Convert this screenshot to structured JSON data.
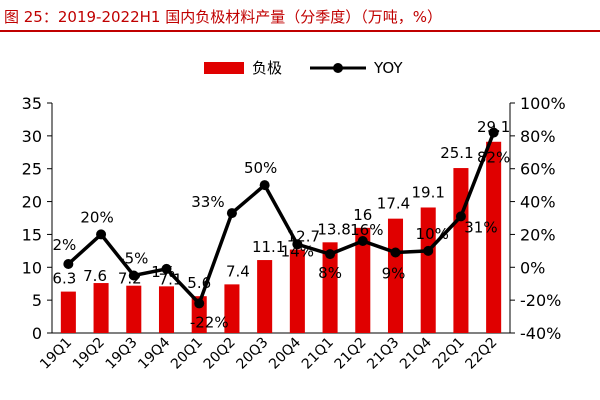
{
  "title": "图 25：2019-2022H1 国内负极材料产量（分季度）（万吨，%）",
  "colors": {
    "title": "#c00000",
    "bar": "#e00000",
    "line": "#000000"
  },
  "chart_data": {
    "type": "bar",
    "categories": [
      "19Q1",
      "19Q2",
      "19Q3",
      "19Q4",
      "20Q1",
      "20Q2",
      "20Q3",
      "20Q4",
      "21Q1",
      "21Q2",
      "21Q3",
      "21Q4",
      "22Q1",
      "22Q2"
    ],
    "series": [
      {
        "name": "负极",
        "type": "bar",
        "axis": "left",
        "values": [
          6.3,
          7.6,
          7.2,
          7.1,
          5.6,
          7.4,
          11.1,
          12.7,
          13.8,
          16,
          17.4,
          19.1,
          25.1,
          29.1
        ],
        "labels": [
          "6.3",
          "7.6",
          "7.2",
          "7.1",
          "5.6",
          "7.4",
          "11.1",
          "12.7",
          "13.8",
          "16",
          "17.4",
          "19.1",
          "25.1",
          "29.1"
        ]
      },
      {
        "name": "YOY",
        "type": "line",
        "axis": "right",
        "values": [
          2,
          20,
          -5,
          -1,
          -22,
          33,
          50,
          14,
          8,
          16,
          9,
          10,
          31,
          82
        ],
        "labels": [
          "2%",
          "20%",
          "-5%",
          "-1%",
          "-22%",
          "33%",
          "50%",
          "14%",
          "8%",
          "16%",
          "9%",
          "10%",
          "31%",
          "82%"
        ]
      }
    ],
    "ylim_left": [
      0,
      35
    ],
    "yticks_left": [
      "0",
      "5",
      "10",
      "15",
      "20",
      "25",
      "30",
      "35"
    ],
    "ylim_right": [
      -40,
      100
    ],
    "yticks_right": [
      "-40%",
      "-20%",
      "0%",
      "20%",
      "40%",
      "60%",
      "80%",
      "100%"
    ],
    "legend_position": "top-center",
    "grid": false
  }
}
